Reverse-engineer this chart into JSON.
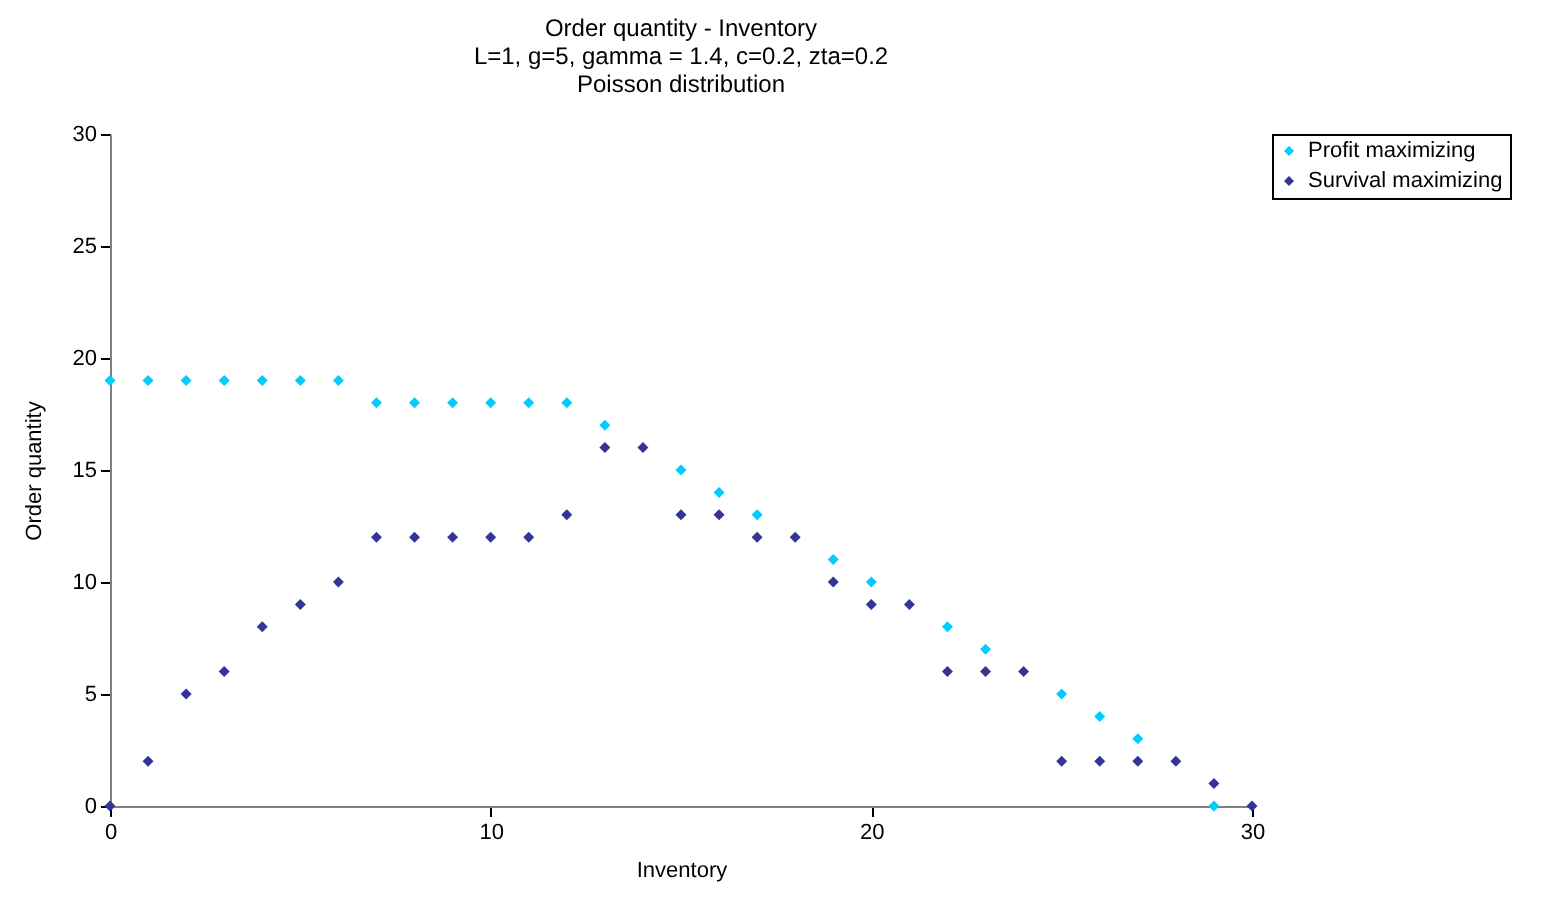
{
  "chart_data": {
    "type": "scatter",
    "title": "Order quantity - Inventory",
    "subtitle": "L=1, g=5, gamma = 1.4, c=0.2, zta=0.2\nPoisson distribution",
    "xlabel": "Inventory",
    "ylabel": "Order quantity",
    "x": [
      0,
      1,
      2,
      3,
      4,
      5,
      6,
      7,
      8,
      9,
      10,
      11,
      12,
      13,
      14,
      15,
      16,
      17,
      18,
      19,
      20,
      21,
      22,
      23,
      24,
      25,
      26,
      27,
      28,
      29,
      30
    ],
    "series": [
      {
        "name": "Profit maximizing",
        "color": "#00ccff",
        "values": [
          19,
          19,
          19,
          19,
          19,
          19,
          19,
          18,
          18,
          18,
          18,
          18,
          18,
          17,
          null,
          15,
          14,
          13,
          null,
          11,
          10,
          null,
          8,
          7,
          null,
          5,
          4,
          3,
          null,
          0,
          null
        ]
      },
      {
        "name": "Survival maximizing",
        "color": "#333399",
        "values": [
          0,
          2,
          5,
          6,
          8,
          9,
          10,
          12,
          12,
          12,
          12,
          12,
          13,
          16,
          16,
          13,
          13,
          12,
          12,
          10,
          9,
          9,
          6,
          6,
          6,
          2,
          2,
          2,
          2,
          1,
          0
        ]
      }
    ],
    "xlim": [
      0,
      30
    ],
    "xticks": [
      0,
      10,
      20,
      30
    ],
    "ylim": [
      0,
      30
    ],
    "yticks": [
      0,
      5,
      10,
      15,
      20,
      25,
      30
    ],
    "grid": false,
    "legend": "right",
    "marker": "diamond"
  }
}
